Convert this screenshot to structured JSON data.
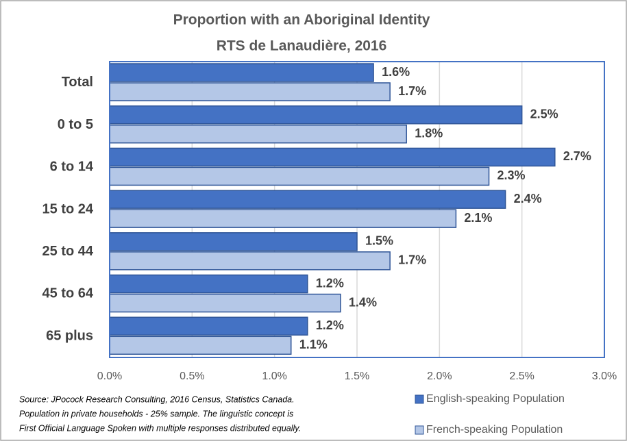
{
  "chart_data": {
    "type": "bar",
    "orientation": "horizontal",
    "title": "Proportion with an Aboriginal Identity",
    "subtitle": "RTS de Lanaudière, 2016",
    "categories": [
      "Total",
      "0 to 5",
      "6 to 14",
      "15 to 24",
      "25 to 44",
      "45 to 64",
      "65 plus"
    ],
    "series": [
      {
        "name": "English-speaking Population",
        "color": "#4472c4",
        "values": [
          1.6,
          2.5,
          2.7,
          2.4,
          1.5,
          1.2,
          1.2
        ],
        "value_labels": [
          "1.6%",
          "2.5%",
          "2.7%",
          "2.4%",
          "1.5%",
          "1.2%",
          "1.2%"
        ]
      },
      {
        "name": "French-speaking Population",
        "color": "#b4c7e7",
        "values": [
          1.7,
          1.8,
          2.3,
          2.1,
          1.7,
          1.4,
          1.1
        ],
        "value_labels": [
          "1.7%",
          "1.8%",
          "2.3%",
          "2.1%",
          "1.7%",
          "1.4%",
          "1.1%"
        ]
      }
    ],
    "xlim": [
      0,
      3
    ],
    "xticks": [
      {
        "value": 0,
        "label": "0.0%"
      },
      {
        "value": 0.5,
        "label": "0.5%"
      },
      {
        "value": 1,
        "label": "1.0%"
      },
      {
        "value": 1.5,
        "label": "1.5%"
      },
      {
        "value": 2,
        "label": "2.0%"
      },
      {
        "value": 2.5,
        "label": "2.5%"
      },
      {
        "value": 3,
        "label": "3.0%"
      }
    ],
    "grid": true,
    "legend": "bottom-right",
    "source": [
      "Source: JPocock Research Consulting, 2016 Census, Statistics Canada.",
      "Population in private households - 25% sample. The linguistic concept is",
      "First Official Language Spoken with multiple responses distributed equally."
    ]
  }
}
